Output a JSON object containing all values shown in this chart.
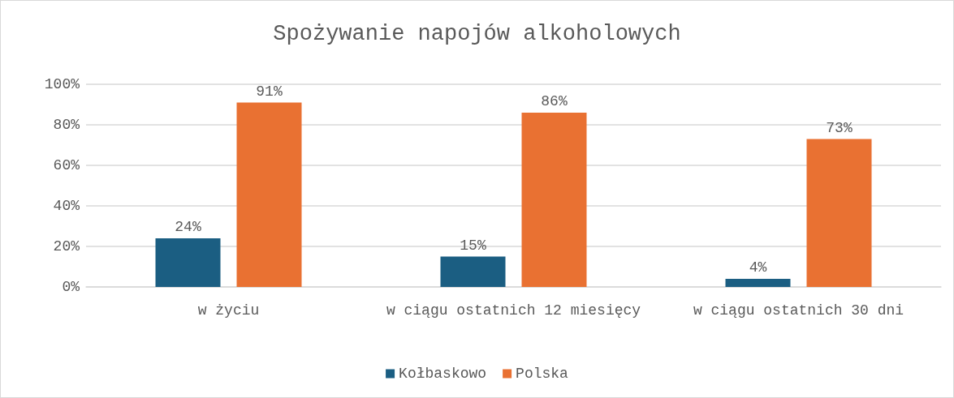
{
  "chart_data": {
    "type": "bar",
    "title": "Spożywanie napojów alkoholowych",
    "categories": [
      "w życiu",
      "w ciągu ostatnich 12 miesięcy",
      "w ciągu ostatnich 30 dni"
    ],
    "series": [
      {
        "name": "Kołbaskowo",
        "color": "#1b5e82",
        "values": [
          24,
          15,
          4
        ],
        "value_labels": [
          "24%",
          "15%",
          "4%"
        ]
      },
      {
        "name": "Polska",
        "color": "#e97132",
        "values": [
          91,
          86,
          73
        ],
        "value_labels": [
          "91%",
          "86%",
          "73%"
        ]
      }
    ],
    "ylim": [
      0,
      100
    ],
    "yticks": [
      {
        "value": 0,
        "label": "0%"
      },
      {
        "value": 20,
        "label": "20%"
      },
      {
        "value": 40,
        "label": "40%"
      },
      {
        "value": 60,
        "label": "60%"
      },
      {
        "value": 80,
        "label": "80%"
      },
      {
        "value": 100,
        "label": "100%"
      }
    ],
    "grid": "y",
    "legend": "bottom"
  }
}
